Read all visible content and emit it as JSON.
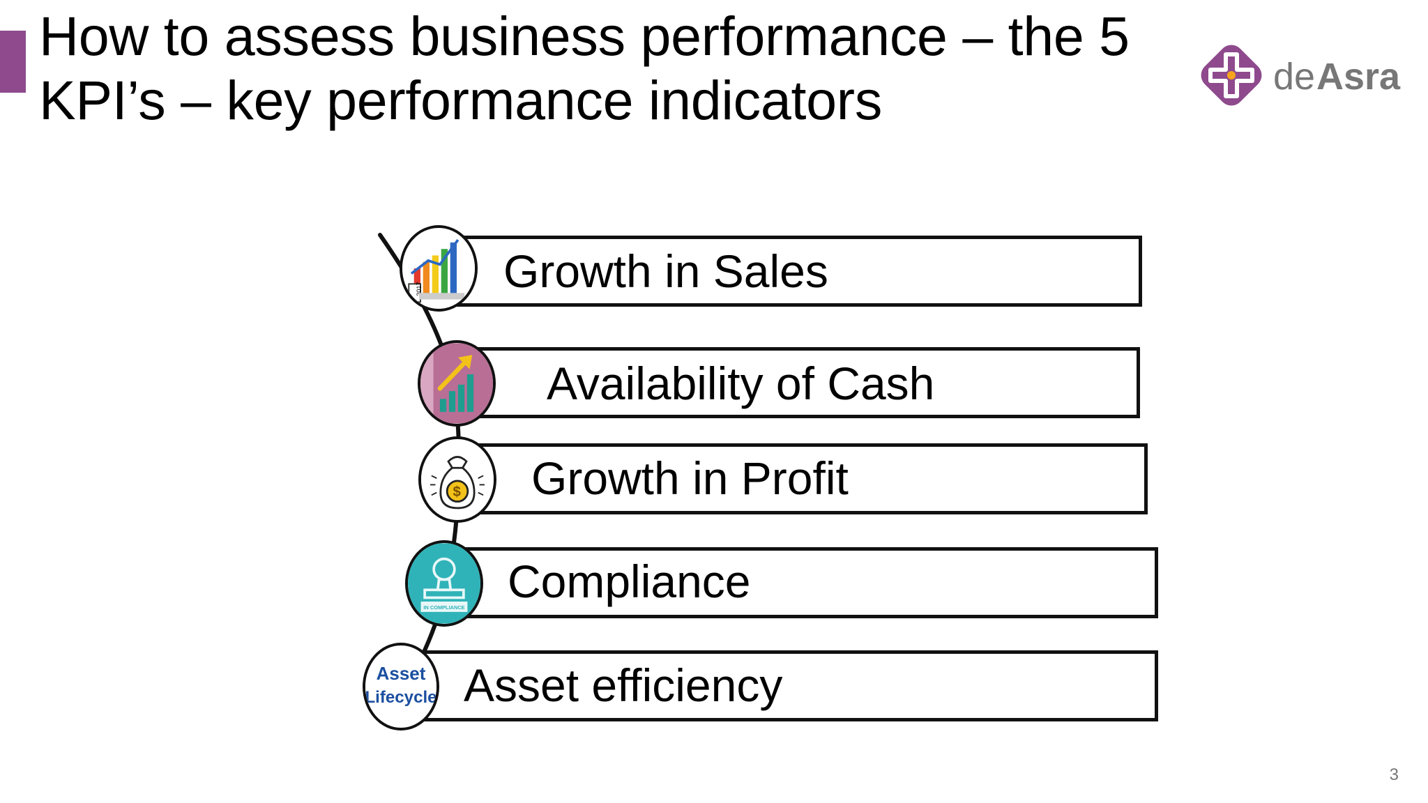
{
  "slide": {
    "title": "How to assess business performance – the 5 KPI’s – key performance indicators",
    "page_number": "3"
  },
  "logo": {
    "text_light": "de",
    "text_bold": "Asra",
    "color": "#8e4a8c"
  },
  "kpis": [
    {
      "label": "Growth in Sales",
      "icon": "sales-growth-chart-icon"
    },
    {
      "label": "Availability of Cash",
      "icon": "rising-bar-chart-icon"
    },
    {
      "label": "Growth in Profit",
      "icon": "money-bag-icon"
    },
    {
      "label": "Compliance",
      "icon": "compliance-stamp-icon",
      "icon_text": "IN COMPLIANCE"
    },
    {
      "label": "Asset efficiency",
      "icon": "asset-lifecycle-icon",
      "icon_text_1": "Asset",
      "icon_text_2": "Lifecycle"
    }
  ],
  "colors": {
    "accent": "#8e4a8c",
    "compliance_teal": "#2fb3b8",
    "cash_pink": "#b86e95",
    "lifecycle_blue": "#1b4fa0"
  }
}
